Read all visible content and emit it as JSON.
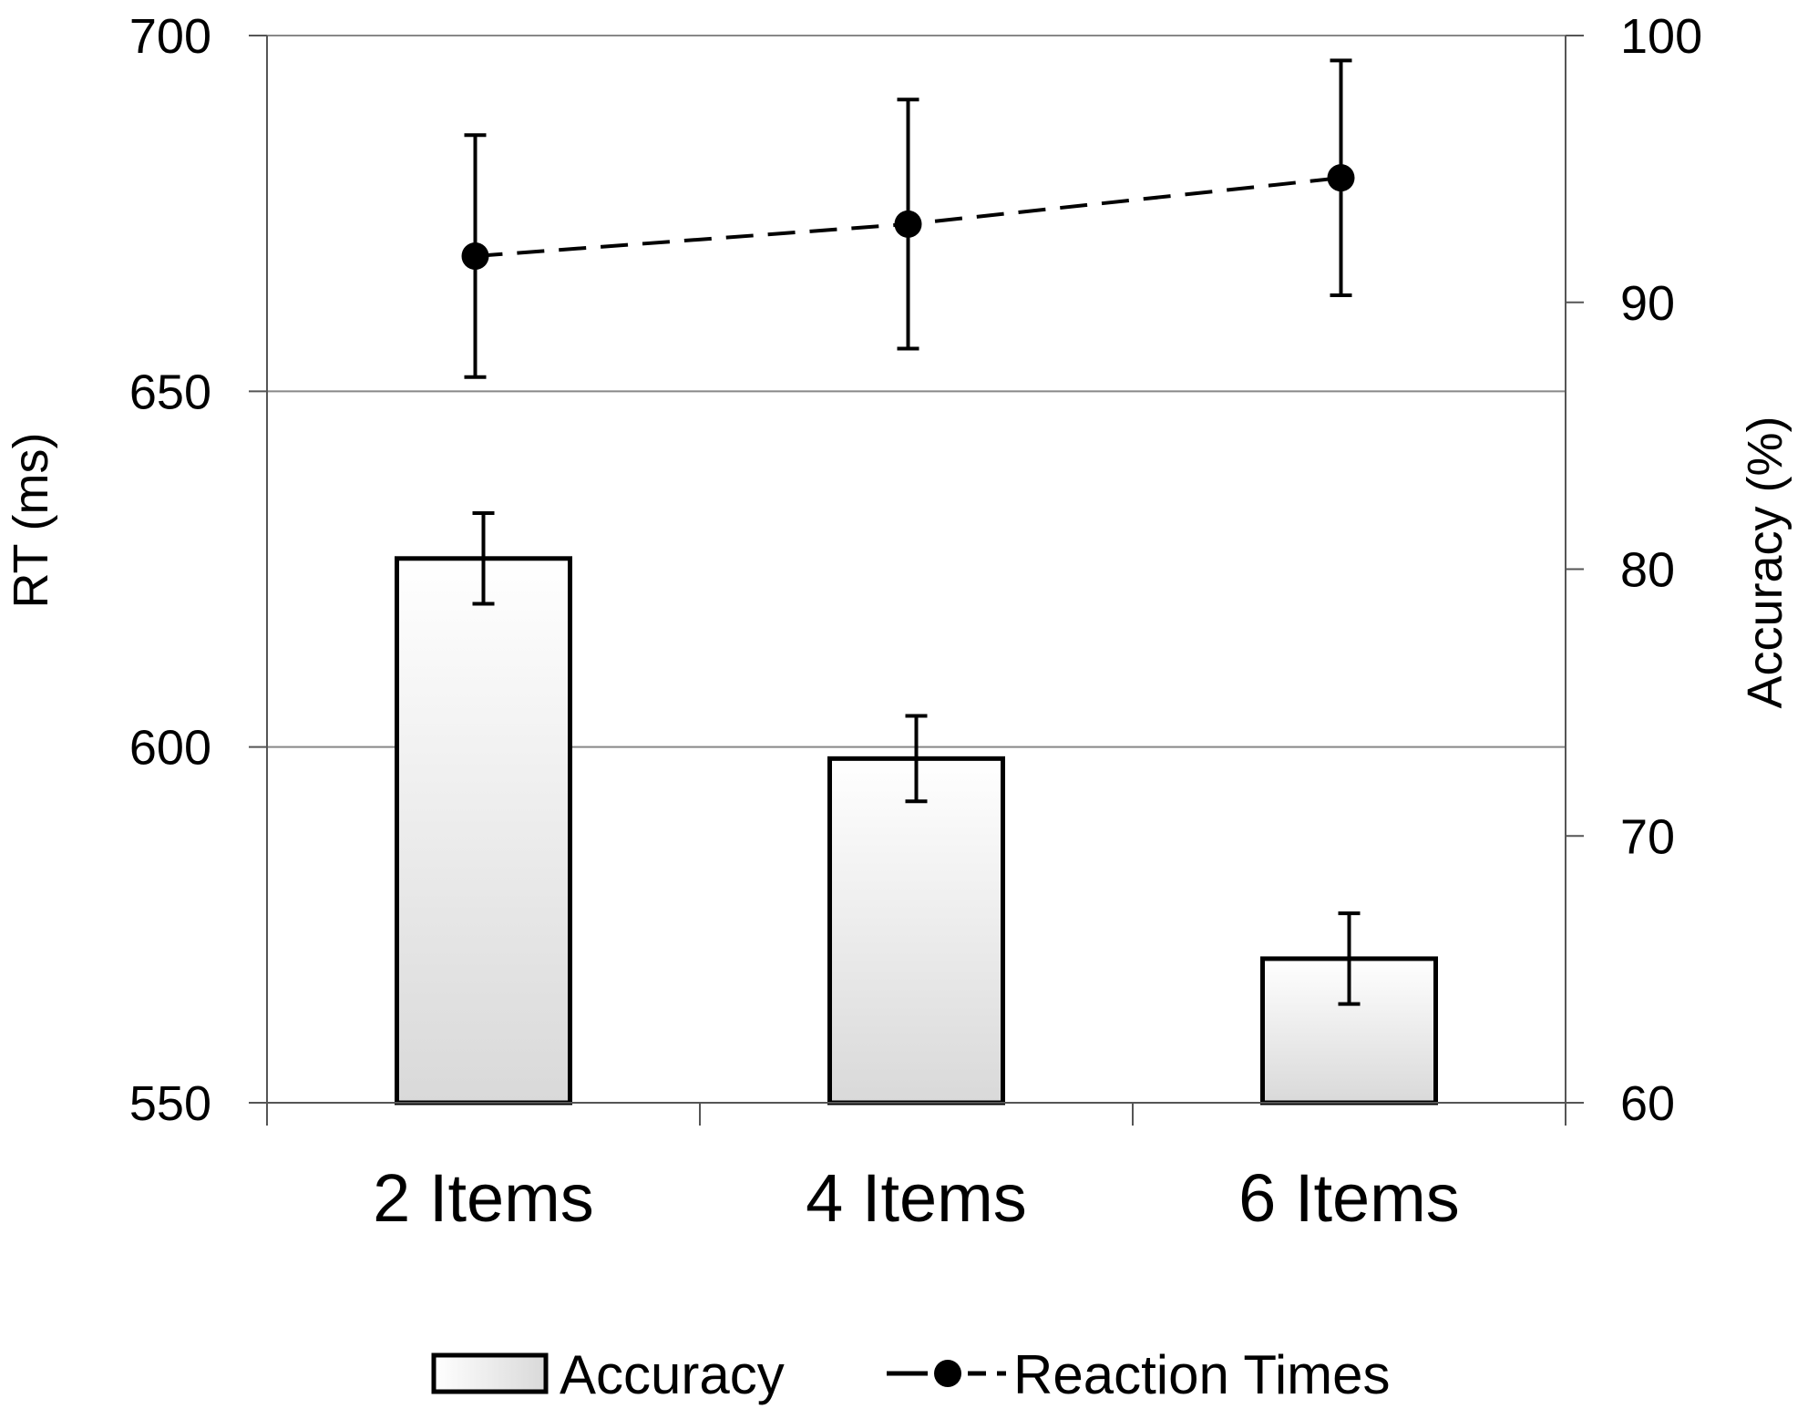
{
  "chart_data": {
    "type": "bar",
    "categories": [
      "2 Items",
      "4 Items",
      "6 Items"
    ],
    "axes": {
      "left": {
        "label": "RT (ms)",
        "ylim": [
          550,
          700
        ],
        "ticks": [
          "550",
          "600",
          "650",
          "700"
        ]
      },
      "right": {
        "label": "Accuracy (%)",
        "ylim": [
          60,
          100
        ],
        "ticks": [
          "60",
          "70",
          "80",
          "90",
          "100"
        ]
      }
    },
    "series": [
      {
        "name": "Accuracy",
        "type": "bar",
        "axis": "right",
        "values": [
          80.4,
          72.9,
          65.4
        ],
        "error": [
          1.7,
          1.6,
          1.7
        ]
      },
      {
        "name": "Reaction Times",
        "type": "line",
        "axis": "left",
        "line_style": "dashed",
        "values": [
          669,
          673.5,
          680
        ],
        "error": [
          17,
          17.5,
          16.5
        ]
      }
    ],
    "grid": {
      "horizontal": true,
      "vertical": false
    },
    "legend_position": "bottom",
    "colors": {
      "bar_gradient_top": "#ffffff",
      "bar_gradient_bottom": "#d9d9d9",
      "stroke": "#000000",
      "grid": "#888888"
    }
  }
}
